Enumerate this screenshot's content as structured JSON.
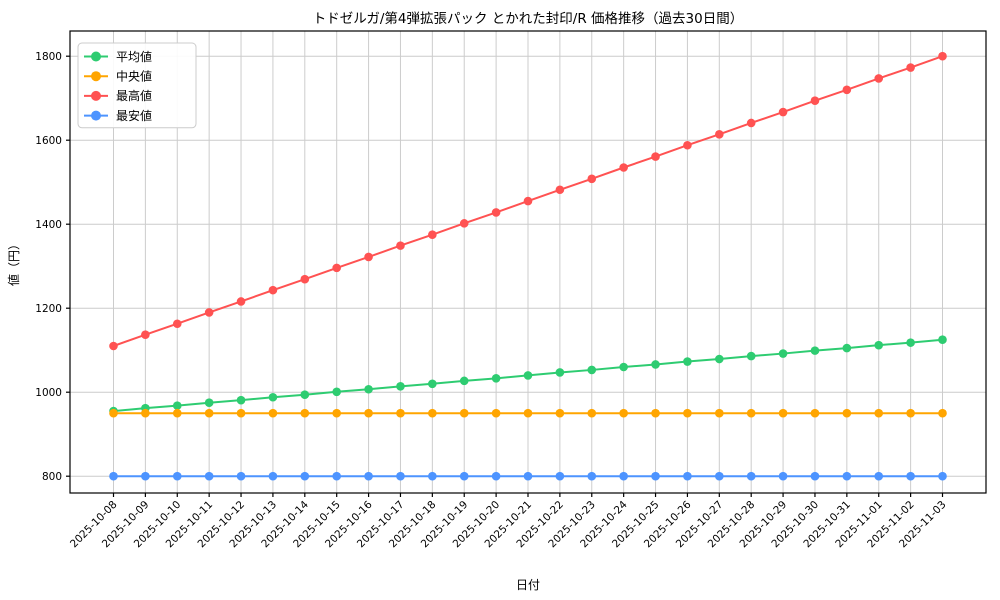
{
  "chart_data": {
    "type": "line",
    "title": "トドゼルガ/第4弾拡張パック とかれた封印/R 価格推移（過去30日間）",
    "xlabel": "日付",
    "ylabel": "値（円）",
    "grid": true,
    "legend_position": "upper left",
    "background_color": "#ffffff",
    "grid_color": "#cccccc",
    "axis_color": "#000000",
    "ylim": [
      760,
      1860
    ],
    "yticks": [
      800,
      1000,
      1200,
      1400,
      1600,
      1800
    ],
    "x": [
      "2025-10-08",
      "2025-10-09",
      "2025-10-10",
      "2025-10-11",
      "2025-10-12",
      "2025-10-13",
      "2025-10-14",
      "2025-10-15",
      "2025-10-16",
      "2025-10-17",
      "2025-10-18",
      "2025-10-19",
      "2025-10-20",
      "2025-10-21",
      "2025-10-22",
      "2025-10-23",
      "2025-10-24",
      "2025-10-25",
      "2025-10-26",
      "2025-10-27",
      "2025-10-28",
      "2025-10-29",
      "2025-10-30",
      "2025-10-31",
      "2025-11-01",
      "2025-11-02",
      "2025-11-03"
    ],
    "series": [
      {
        "id": "mean",
        "name": "平均値",
        "color": "#2ecc71",
        "values": [
          955,
          962,
          968,
          975,
          981,
          988,
          994,
          1001,
          1007,
          1014,
          1020,
          1027,
          1033,
          1040,
          1047,
          1053,
          1060,
          1066,
          1073,
          1079,
          1086,
          1092,
          1099,
          1105,
          1112,
          1118,
          1125
        ]
      },
      {
        "id": "median",
        "name": "中央値",
        "color": "#ffa500",
        "values": [
          950,
          950,
          950,
          950,
          950,
          950,
          950,
          950,
          950,
          950,
          950,
          950,
          950,
          950,
          950,
          950,
          950,
          950,
          950,
          950,
          950,
          950,
          950,
          950,
          950,
          950,
          950
        ]
      },
      {
        "id": "max",
        "name": "最高値",
        "color": "#ff5252",
        "values": [
          1110,
          1137,
          1163,
          1190,
          1216,
          1243,
          1269,
          1296,
          1322,
          1349,
          1375,
          1402,
          1428,
          1455,
          1482,
          1508,
          1535,
          1561,
          1588,
          1614,
          1641,
          1667,
          1694,
          1720,
          1747,
          1773,
          1800
        ]
      },
      {
        "id": "min",
        "name": "最安値",
        "color": "#4d94ff",
        "values": [
          800,
          800,
          800,
          800,
          800,
          800,
          800,
          800,
          800,
          800,
          800,
          800,
          800,
          800,
          800,
          800,
          800,
          800,
          800,
          800,
          800,
          800,
          800,
          800,
          800,
          800,
          800
        ]
      }
    ]
  }
}
